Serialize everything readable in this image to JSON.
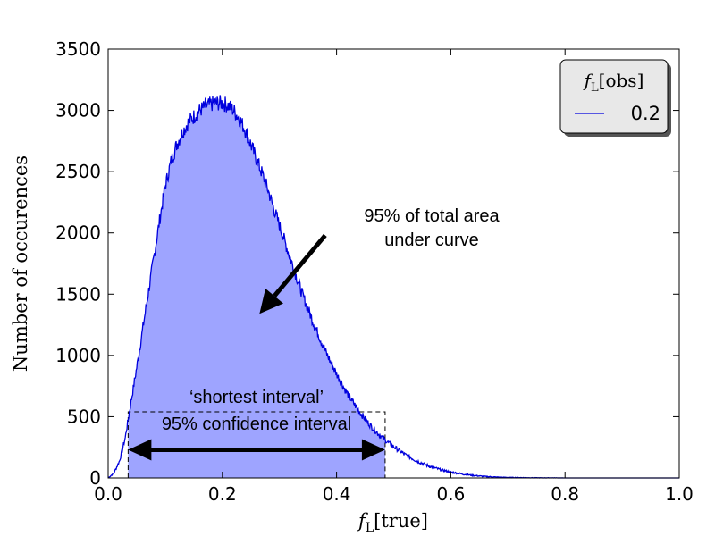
{
  "chart_data": {
    "type": "area",
    "title": "",
    "xlabel": "f_L[true]",
    "ylabel": "Number of occurences",
    "xlim": [
      0.0,
      1.0
    ],
    "ylim": [
      0,
      3500
    ],
    "x_ticks": [
      "0.0",
      "0.2",
      "0.4",
      "0.6",
      "0.8",
      "1.0"
    ],
    "y_ticks": [
      "0",
      "500",
      "1000",
      "1500",
      "2000",
      "2500",
      "3000",
      "3500"
    ],
    "grid": false,
    "legend": {
      "position": "top-right",
      "title": "f_L[obs]",
      "entries": [
        {
          "name": "0.2",
          "color": "#0000dd"
        }
      ]
    },
    "series": [
      {
        "name": "0.2",
        "color": "#0000dd",
        "fill_color": "#9ea4ff",
        "x": [
          0.0,
          0.01,
          0.02,
          0.03,
          0.04,
          0.05,
          0.06,
          0.07,
          0.08,
          0.09,
          0.1,
          0.11,
          0.12,
          0.13,
          0.14,
          0.15,
          0.16,
          0.17,
          0.18,
          0.19,
          0.2,
          0.21,
          0.22,
          0.23,
          0.24,
          0.25,
          0.26,
          0.27,
          0.28,
          0.29,
          0.3,
          0.31,
          0.32,
          0.33,
          0.34,
          0.35,
          0.36,
          0.37,
          0.38,
          0.39,
          0.4,
          0.41,
          0.42,
          0.43,
          0.44,
          0.45,
          0.46,
          0.47,
          0.48,
          0.49,
          0.5,
          0.52,
          0.54,
          0.56,
          0.58,
          0.6,
          0.62,
          0.64,
          0.66,
          0.68,
          0.7,
          0.72,
          0.74,
          0.76,
          0.78,
          0.8,
          0.82,
          0.85,
          0.9,
          0.95,
          1.0
        ],
        "values": [
          0,
          40,
          140,
          330,
          620,
          900,
          1200,
          1500,
          1800,
          2100,
          2380,
          2580,
          2720,
          2820,
          2900,
          2950,
          3000,
          3030,
          3050,
          3060,
          3060,
          3040,
          3000,
          2930,
          2840,
          2720,
          2600,
          2480,
          2350,
          2200,
          2060,
          1920,
          1780,
          1640,
          1500,
          1380,
          1260,
          1150,
          1040,
          940,
          850,
          760,
          680,
          610,
          540,
          480,
          425,
          375,
          330,
          290,
          255,
          190,
          140,
          100,
          70,
          48,
          32,
          20,
          12,
          7,
          4,
          3,
          2,
          1,
          1,
          0,
          0,
          0,
          0,
          0,
          0
        ]
      }
    ],
    "interval": {
      "x_start": 0.035,
      "x_end": 0.485,
      "height": 540
    },
    "annotations": {
      "area_line1": "95% of total area",
      "area_line2": "under curve",
      "interval_line1": "‘shortest interval’",
      "interval_line2": "95% confidence interval"
    },
    "arrow_area": {
      "from": [
        0.38,
        1980
      ],
      "to": [
        0.265,
        1340
      ]
    },
    "arrow_interval": {
      "from": [
        0.035,
        230
      ],
      "to": [
        0.485,
        230
      ]
    }
  }
}
